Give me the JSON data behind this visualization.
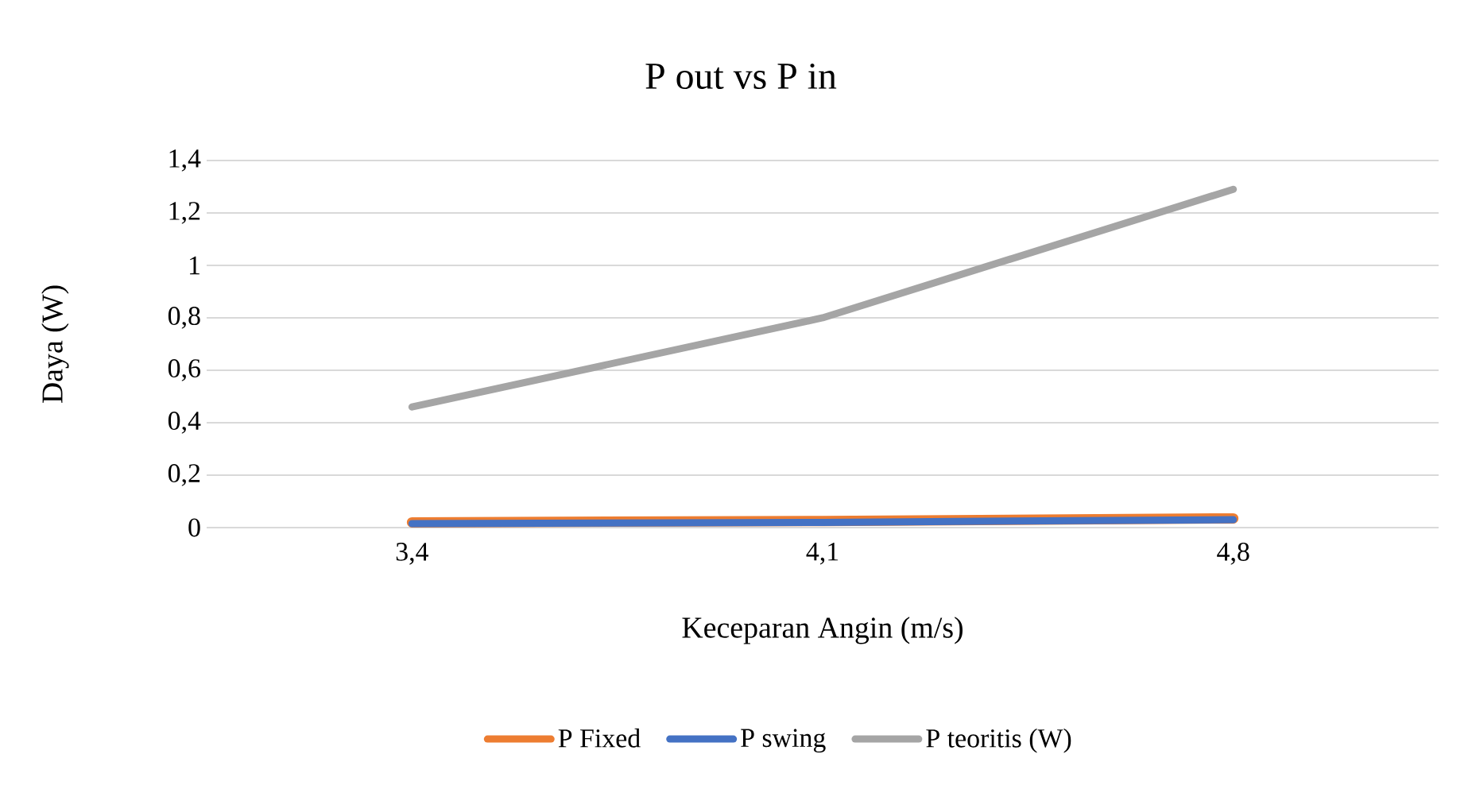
{
  "chart_data": {
    "type": "line",
    "title": "P out vs P in",
    "xlabel": "Keceparan Angin (m/s)",
    "ylabel": "Daya (W)",
    "categories": [
      "3,4",
      "4,1",
      "4,8"
    ],
    "series": [
      {
        "name": "P Fixed",
        "color": "#ed7d31",
        "values": [
          0.02,
          0.025,
          0.035
        ]
      },
      {
        "name": "P swing",
        "color": "#4472c4",
        "values": [
          0.015,
          0.02,
          0.03
        ]
      },
      {
        "name": "P teoritis (W)",
        "color": "#a5a5a5",
        "values": [
          0.46,
          0.8,
          1.29
        ]
      }
    ],
    "ylim": [
      0,
      1.4
    ],
    "yticks": [
      0,
      {
        "value": 0.2,
        "label": "0,2"
      },
      {
        "value": 0.4,
        "label": "0,4"
      },
      {
        "value": 0.6,
        "label": "0,6"
      },
      {
        "value": 0.8,
        "label": "0,8"
      },
      1,
      {
        "value": 1.2,
        "label": "1,2"
      },
      {
        "value": 1.4,
        "label": "1,4"
      }
    ],
    "grid": "y",
    "legend": "bottom",
    "marker": "none",
    "line_style": "solid"
  }
}
